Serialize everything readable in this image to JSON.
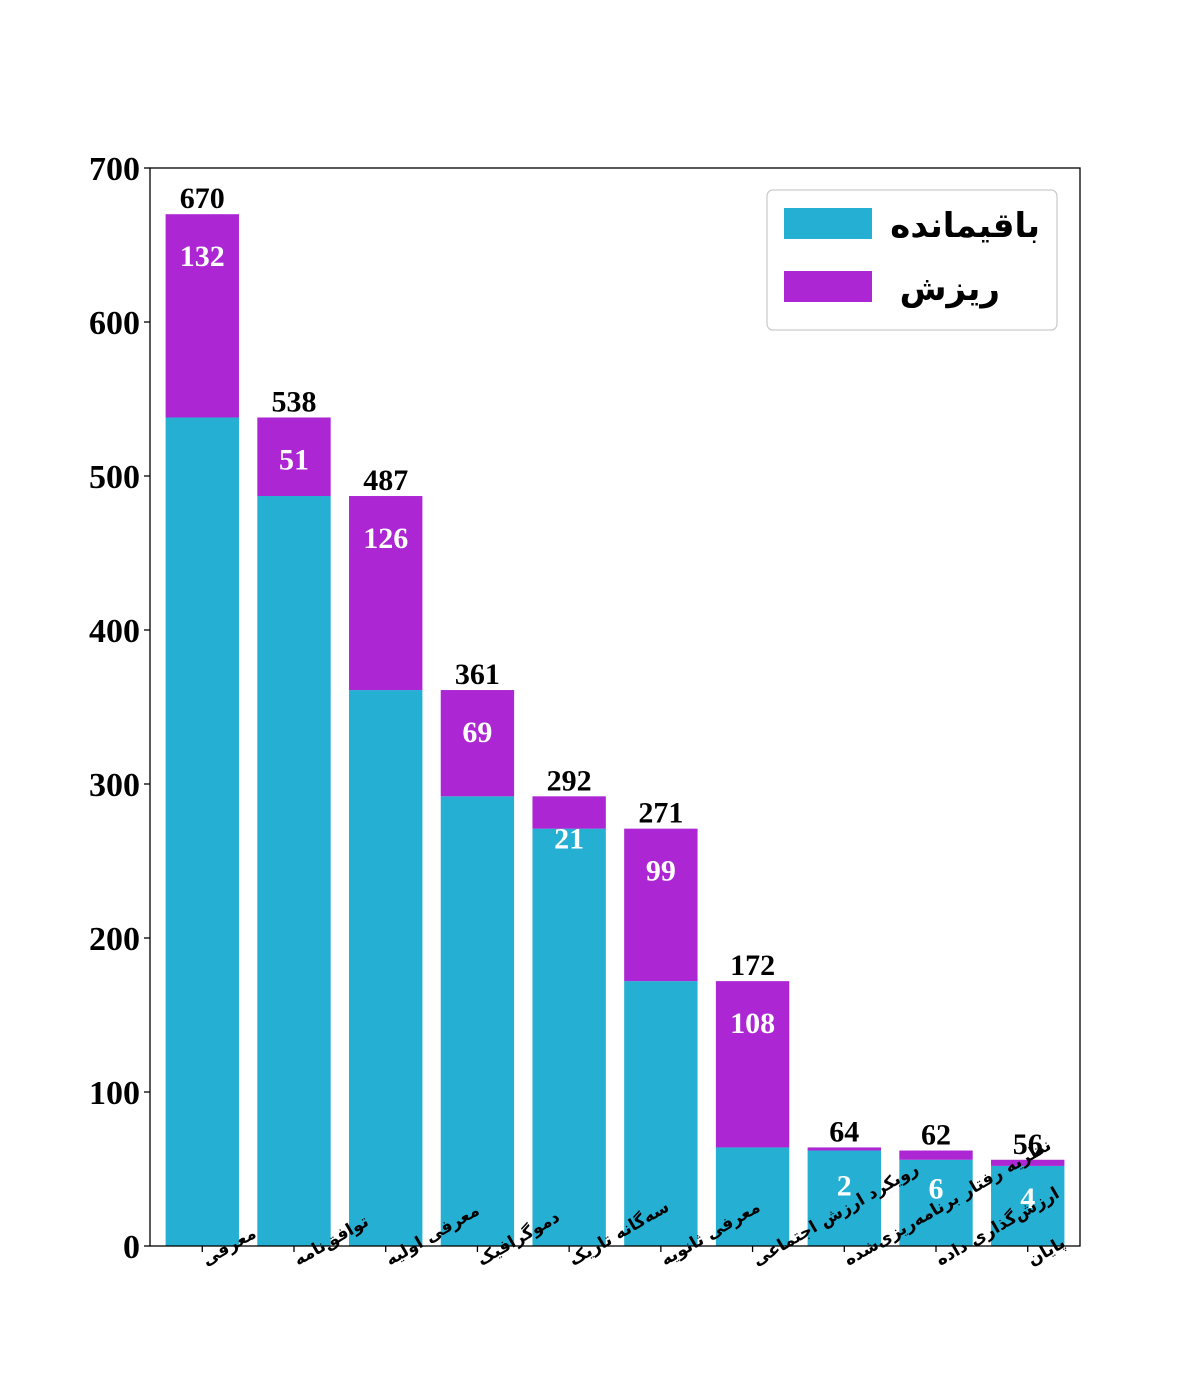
{
  "chart_data": {
    "type": "bar",
    "stacked": true,
    "categories": [
      "معرفی",
      "توافق‌نامه",
      "معرفی اولیه",
      "دموگرافیک",
      "سه‌گانه تاریک",
      "معرفی ثانویه",
      "رویکرد ارزش اجتماعی",
      "نظریه رفتار برنامه‌ریزی‌شده",
      "ارزش‌گذاری داده",
      "پایان"
    ],
    "series": [
      {
        "name": "باقیمانده",
        "color": "#24afd3",
        "values": [
          538,
          487,
          361,
          292,
          271,
          172,
          64,
          62,
          56,
          52
        ]
      },
      {
        "name": "ریزش",
        "color": "#ac26d3",
        "values": [
          132,
          51,
          126,
          69,
          21,
          99,
          108,
          2,
          6,
          4
        ]
      }
    ],
    "totals": [
      670,
      538,
      487,
      361,
      292,
      271,
      172,
      64,
      62,
      56
    ],
    "ylim": [
      0,
      700
    ],
    "yticks": [
      0,
      100,
      200,
      300,
      400,
      500,
      600,
      700
    ],
    "xlabel": "",
    "ylabel": "",
    "title": "",
    "grid": false,
    "legend_position": "top-right"
  }
}
